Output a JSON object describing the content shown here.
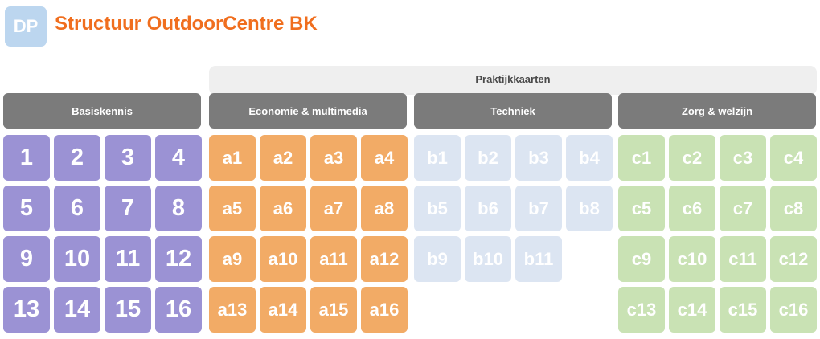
{
  "header": {
    "logo_text": "DP",
    "title": "Structuur OutdoorCentre BK"
  },
  "praktijk_header": "Praktijkkaarten",
  "categories": {
    "basiskennis": "Basiskennis",
    "economie": "Economie & multimedia",
    "techniek": "Techniek",
    "zorg": "Zorg & welzijn"
  },
  "tiles": {
    "basiskennis": [
      "1",
      "2",
      "3",
      "4",
      "5",
      "6",
      "7",
      "8",
      "9",
      "10",
      "11",
      "12",
      "13",
      "14",
      "15",
      "16"
    ],
    "economie": [
      "a1",
      "a2",
      "a3",
      "a4",
      "a5",
      "a6",
      "a7",
      "a8",
      "a9",
      "a10",
      "a11",
      "a12",
      "a13",
      "a14",
      "a15",
      "a16"
    ],
    "techniek": [
      "b1",
      "b2",
      "b3",
      "b4",
      "b5",
      "b6",
      "b7",
      "b8",
      "b9",
      "b10",
      "b11"
    ],
    "zorg": [
      "c1",
      "c2",
      "c3",
      "c4",
      "c5",
      "c6",
      "c7",
      "c8",
      "c9",
      "c10",
      "c11",
      "c12",
      "c13",
      "c14",
      "c15",
      "c16"
    ]
  },
  "colors": {
    "title": "#f06e1e",
    "logo": "#bcd6ef",
    "category_header": "#7b7b7b",
    "basiskennis": "#9b92d4",
    "economie": "#f2ab66",
    "techniek": "#dce5f2",
    "zorg": "#c9e2b4"
  }
}
